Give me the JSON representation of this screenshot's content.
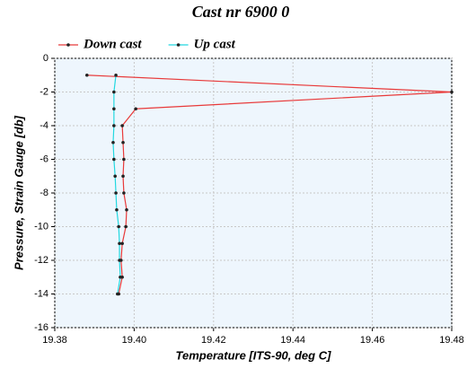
{
  "chart_data": {
    "type": "line",
    "title": "Cast nr 6900 0",
    "x_label": "Temperature [ITS-90, deg C]",
    "y_label": "Pressure, Strain Gauge [db]",
    "xlim": [
      19.38,
      19.48
    ],
    "xticks": [
      19.38,
      {
        "value": 19.4,
        "label": "19.40"
      },
      19.42,
      19.44,
      19.46,
      19.48
    ],
    "ylim": [
      -16,
      0
    ],
    "yticks": [
      -16,
      -14,
      -12,
      -10,
      -8,
      -6,
      -4,
      -2,
      0
    ],
    "grid": true,
    "legend": "top-left",
    "series": [
      {
        "name": "Down cast",
        "color": "#e83a3a",
        "x": [
          19.3881,
          19.48,
          19.4004,
          19.397,
          19.3972,
          19.3974,
          19.3972,
          19.3974,
          19.3981,
          19.3979,
          19.397,
          19.3967,
          19.397,
          19.3961
        ],
        "values": [
          -1,
          -2,
          -3,
          -4,
          -5,
          -6,
          -7,
          -8,
          -9,
          -10,
          -11,
          -12,
          -13,
          -14
        ]
      },
      {
        "name": "Up cast",
        "color": "#22d8e0",
        "x": [
          19.3954,
          19.3949,
          19.3949,
          19.3949,
          19.3947,
          19.3949,
          19.3952,
          19.3954,
          19.3956,
          19.3961,
          19.3963,
          19.3963,
          19.3965,
          19.3958
        ],
        "values": [
          -1,
          -2,
          -3,
          -4,
          -5,
          -6,
          -7,
          -8,
          -9,
          -10,
          -11,
          -12,
          -13,
          -14
        ]
      }
    ]
  }
}
